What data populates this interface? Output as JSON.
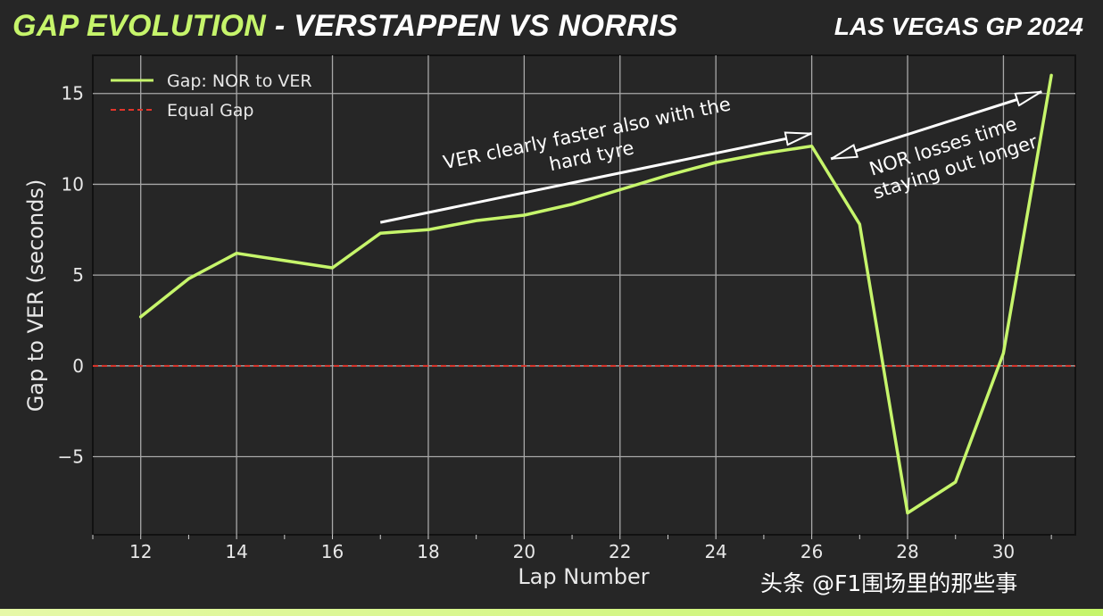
{
  "header": {
    "title_accent": "GAP EVOLUTION",
    "title_rest": " - VERSTAPPEN VS NORRIS",
    "event": "LAS VEGAS GP 2024"
  },
  "watermark": "头条 @F1围场里的那些事",
  "colors": {
    "background": "#262626",
    "accent": "#c6f56b",
    "series_line": "#c6f56b",
    "reference_line": "#e0352b",
    "grid": "#a8a8a8"
  },
  "chart_data": {
    "type": "line",
    "xlabel": "Lap Number",
    "ylabel": "Gap to VER (seconds)",
    "xlim": [
      11,
      31.5
    ],
    "ylim": [
      -9.3,
      17.1
    ],
    "xticks": [
      12,
      14,
      16,
      18,
      20,
      22,
      24,
      26,
      28,
      30
    ],
    "yticks": [
      -5,
      0,
      5,
      10,
      15
    ],
    "ytick_labels": [
      "−5",
      "0",
      "5",
      "10",
      "15"
    ],
    "grid": true,
    "legend_position": "top-left",
    "series": [
      {
        "name": "Gap: NOR to VER",
        "style": "solid",
        "color": "#c6f56b",
        "x": [
          12,
          13,
          14,
          15,
          16,
          17,
          18,
          19,
          20,
          21,
          22,
          23,
          24,
          25,
          26,
          27,
          28,
          29,
          30,
          31
        ],
        "y": [
          2.7,
          4.8,
          6.2,
          5.8,
          5.4,
          7.3,
          7.5,
          8.0,
          8.3,
          8.9,
          9.7,
          10.5,
          11.2,
          11.7,
          12.1,
          7.8,
          -8.1,
          -6.4,
          0.7,
          16.0
        ]
      },
      {
        "name": "Equal Gap",
        "style": "dashed",
        "color": "#e0352b",
        "x": [
          11,
          31.5
        ],
        "y": [
          0,
          0
        ]
      }
    ],
    "annotations": [
      {
        "lines": [
          "VER clearly faster also with the",
          "hard tyre"
        ],
        "arrow_from": [
          17.0,
          7.9
        ],
        "arrow_to": [
          26.0,
          12.8
        ],
        "arrow_style": "single"
      },
      {
        "lines": [
          "NOR losses time",
          "staying out longer"
        ],
        "arrow_from": [
          26.4,
          11.4
        ],
        "arrow_to": [
          30.8,
          15.1
        ],
        "arrow_style": "double"
      }
    ]
  }
}
